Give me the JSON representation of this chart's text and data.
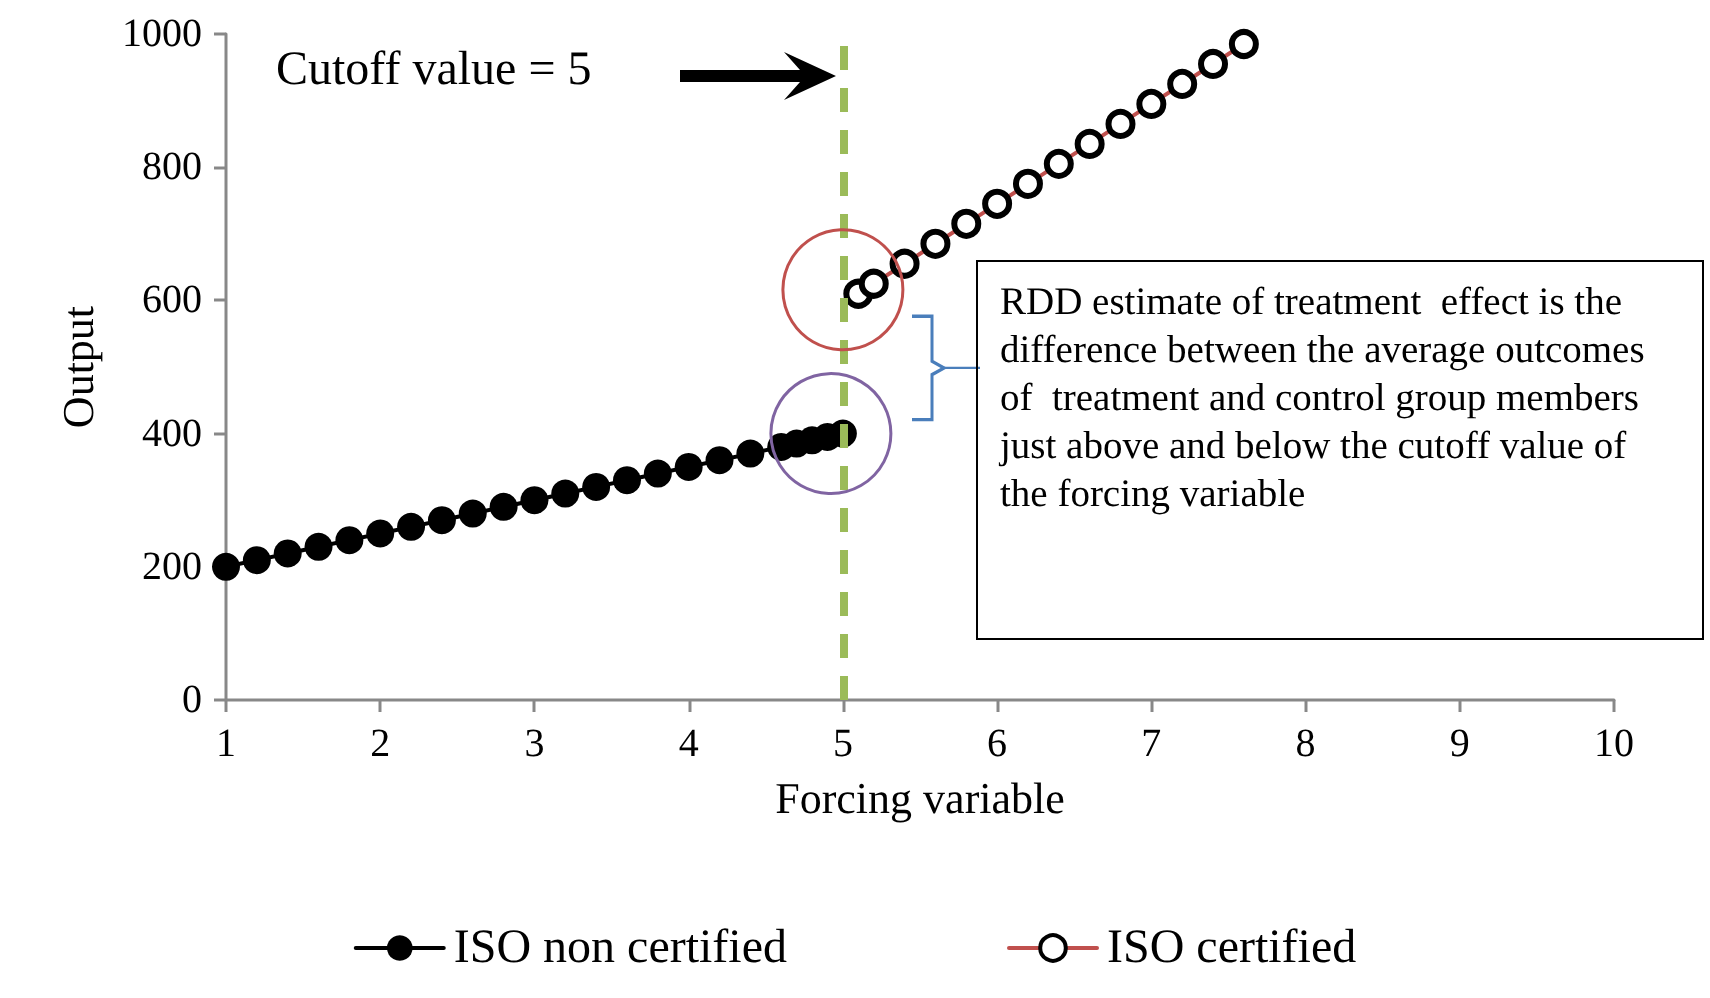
{
  "chart_data": {
    "type": "line",
    "xlabel": "Forcing variable",
    "ylabel": "Output",
    "xlim": [
      1,
      10
    ],
    "xticks": [
      1,
      2,
      3,
      4,
      5,
      6,
      7,
      8,
      9,
      10
    ],
    "ylim": [
      0,
      1000
    ],
    "yticks": [
      0,
      200,
      400,
      600,
      800,
      1000
    ],
    "grid": false,
    "legend": "bottom",
    "marker": "circle",
    "series": [
      {
        "name": "ISO non certified",
        "color": "#000000",
        "x": [
          1,
          1.2,
          1.4,
          1.6,
          1.8,
          2,
          2.2,
          2.4,
          2.6,
          2.8,
          3,
          3.2,
          3.4,
          3.6,
          3.8,
          4,
          4.2,
          4.4,
          4.6,
          4.7,
          4.8,
          4.9,
          5
        ],
        "values": [
          200,
          210,
          220,
          230,
          240,
          250,
          260,
          270,
          280,
          290,
          300,
          310,
          320,
          330,
          340,
          350,
          360,
          370,
          380,
          385,
          390,
          395,
          400
        ]
      },
      {
        "name": "ISO certified",
        "color": "#c0504d",
        "x": [
          5.1,
          5.2,
          5.4,
          5.6,
          5.8,
          6,
          6.2,
          6.4,
          6.6,
          6.8,
          7,
          7.2,
          7.4,
          7.6
        ],
        "values": [
          610,
          625,
          655,
          685,
          715,
          745,
          775,
          805,
          835,
          865,
          895,
          925,
          955,
          985
        ]
      }
    ],
    "ref_lines": [
      {
        "axis": "x",
        "value": 5,
        "color": "#9bbb59",
        "line_style": "dashed"
      }
    ],
    "annotations": [
      "Cutoff value = 5",
      "RDD estimate of treatment  effect is the difference between the average outcomes of  treatment and control group members just above and below the cutoff value of the forcing variable"
    ]
  }
}
